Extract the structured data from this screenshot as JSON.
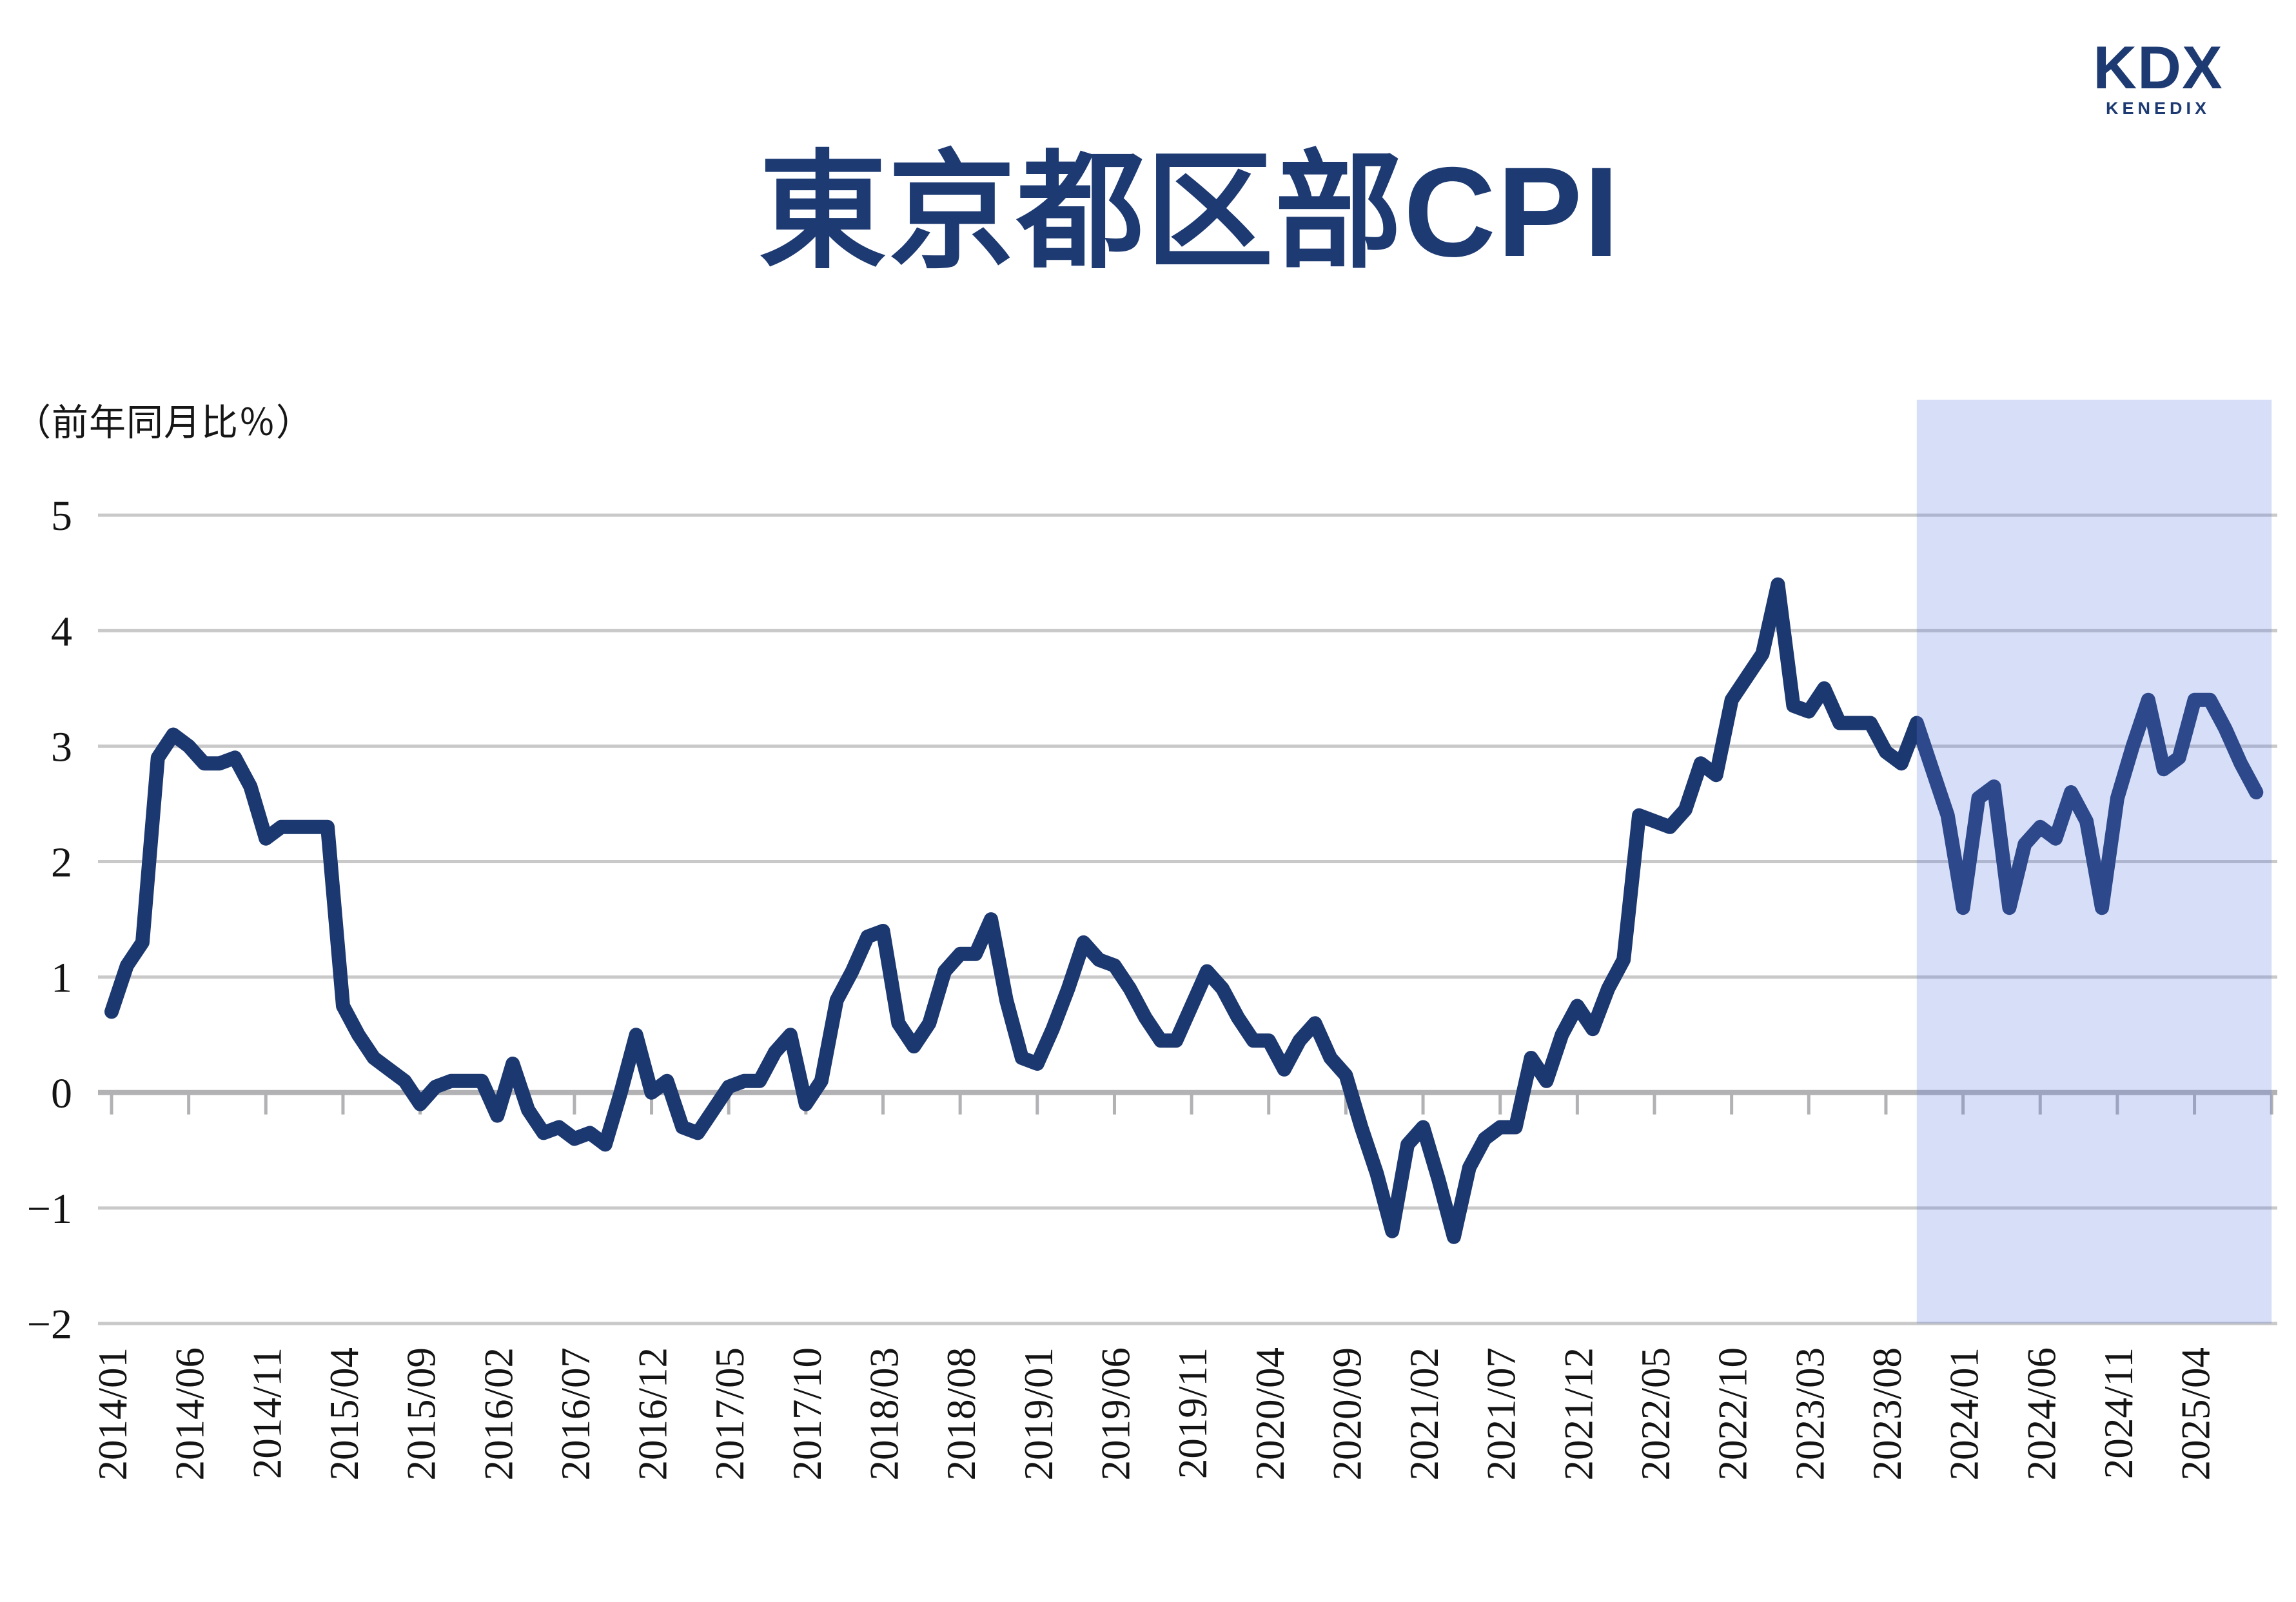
{
  "title": "東京都区部CPI",
  "logo": {
    "primary": "KDX",
    "secondary": "KENEDIX"
  },
  "y_axis_unit": "（前年同月比％）",
  "chart_data": {
    "type": "line",
    "title": "東京都区部CPI",
    "ylabel": "（前年同月比％）",
    "ylim": [
      -2,
      6
    ],
    "grid": true,
    "legend": "none",
    "y_tick_labels": [
      "5",
      "4",
      "3",
      "2",
      "1",
      "0",
      "−1",
      "−2"
    ],
    "y_tick_values": [
      5,
      4,
      3,
      2,
      1,
      0,
      -1,
      -2
    ],
    "x_tick_interval_months": 5,
    "x_tick_labels": [
      "2014/01",
      "2014/06",
      "2014/11",
      "2015/04",
      "2015/09",
      "2016/02",
      "2016/07",
      "2016/12",
      "2017/05",
      "2017/10",
      "2018/03",
      "2018/08",
      "2019/01",
      "2019/06",
      "2019/11",
      "2020/04",
      "2020/09",
      "2021/02",
      "2021/07",
      "2021/12",
      "2022/05",
      "2022/10",
      "2023/03",
      "2023/08",
      "2024/01",
      "2024/06",
      "2024/11",
      "2025/04"
    ],
    "highlight_region": {
      "from": "2023/10",
      "to": "2025/09"
    },
    "series": [
      {
        "name": "東京都区部CPI（前年同月比％）",
        "start": "2014/01",
        "end": "2025/08",
        "frequency": "monthly",
        "values": [
          0.7,
          1.1,
          1.3,
          2.9,
          3.1,
          3.0,
          2.85,
          2.85,
          2.9,
          2.65,
          2.2,
          2.3,
          2.3,
          2.3,
          2.3,
          0.75,
          0.5,
          0.3,
          0.2,
          0.1,
          -0.1,
          0.05,
          0.1,
          0.1,
          0.1,
          -0.2,
          0.25,
          -0.15,
          -0.35,
          -0.3,
          -0.4,
          -0.35,
          -0.45,
          0.0,
          0.5,
          0.0,
          0.1,
          -0.3,
          -0.35,
          -0.15,
          0.05,
          0.1,
          0.1,
          0.35,
          0.5,
          -0.1,
          0.1,
          0.8,
          1.05,
          1.35,
          1.4,
          0.6,
          0.4,
          0.6,
          1.05,
          1.2,
          1.2,
          1.5,
          0.8,
          0.3,
          0.25,
          0.55,
          0.9,
          1.3,
          1.15,
          1.1,
          0.9,
          0.65,
          0.45,
          0.45,
          0.75,
          1.05,
          0.9,
          0.65,
          0.45,
          0.45,
          0.2,
          0.45,
          0.6,
          0.3,
          0.15,
          -0.3,
          -0.7,
          -1.2,
          -0.45,
          -0.3,
          -0.75,
          -1.25,
          -0.65,
          -0.4,
          -0.3,
          -0.3,
          0.3,
          0.1,
          0.5,
          0.75,
          0.55,
          0.9,
          1.15,
          2.4,
          2.35,
          2.3,
          2.45,
          2.85,
          2.75,
          3.4,
          3.6,
          3.8,
          4.4,
          3.35,
          3.3,
          3.5,
          3.2,
          3.2,
          3.2,
          2.95,
          2.85,
          3.2,
          2.8,
          2.4,
          1.6,
          2.55,
          2.65,
          1.6,
          2.15,
          2.3,
          2.2,
          2.6,
          2.35,
          1.6,
          2.55,
          3.0,
          3.4,
          2.8,
          2.9,
          3.4,
          3.4,
          3.15,
          2.85,
          2.6
        ]
      }
    ],
    "colors": {
      "line": "#1c3870",
      "gridline": "#c9c9c9",
      "axis": "#b2b2b5",
      "highlight_fill": "#607de1",
      "highlight_opacity": 0.25,
      "title": "#1d3a73"
    }
  }
}
